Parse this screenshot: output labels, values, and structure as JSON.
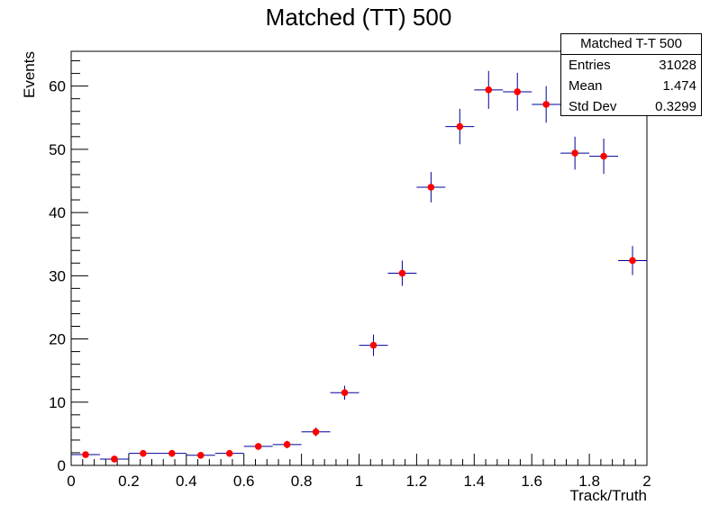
{
  "chart_data": {
    "type": "scatter",
    "title": "Matched (TT) 500",
    "xlabel": "Track/Truth",
    "ylabel": "Events",
    "xlim": [
      0,
      2
    ],
    "ylim": [
      0,
      65.5
    ],
    "x_major_ticks": [
      0,
      0.2,
      0.4,
      0.6,
      0.8,
      1,
      1.2,
      1.4,
      1.6,
      1.8,
      2
    ],
    "x_tick_labels": [
      "0",
      "0.2",
      "0.4",
      "0.6",
      "0.8",
      "1",
      "1.2",
      "1.4",
      "1.6",
      "1.8",
      "2"
    ],
    "y_major_ticks": [
      0,
      10,
      20,
      30,
      40,
      50,
      60
    ],
    "y_tick_labels": [
      "0",
      "10",
      "20",
      "30",
      "40",
      "50",
      "60"
    ],
    "bin_width": 0.1,
    "series": [
      {
        "name": "Matched T-T 500",
        "x": [
          0.05,
          0.15,
          0.25,
          0.35,
          0.45,
          0.55,
          0.65,
          0.75,
          0.85,
          0.95,
          1.05,
          1.15,
          1.25,
          1.35,
          1.45,
          1.55,
          1.65,
          1.75,
          1.85,
          1.95
        ],
        "y": [
          1.7,
          1.0,
          1.9,
          1.9,
          1.6,
          1.9,
          3.0,
          3.3,
          5.3,
          11.5,
          19.0,
          30.4,
          44.0,
          53.6,
          59.4,
          59.1,
          57.1,
          49.4,
          48.9,
          32.4
        ],
        "y_err": [
          0.4,
          0.3,
          0.4,
          0.4,
          0.4,
          0.4,
          0.5,
          0.6,
          0.7,
          1.1,
          1.7,
          2.0,
          2.4,
          2.8,
          3.0,
          3.0,
          2.9,
          2.6,
          2.8,
          2.3
        ]
      }
    ],
    "colors": {
      "marker": "#ff0000",
      "error_bar": "#000099",
      "axis": "#000000",
      "background": "#ffffff"
    },
    "legend": "top-right"
  },
  "stats_box": {
    "title": "Matched T-T 500",
    "rows": [
      {
        "label": "Entries",
        "value": "31028"
      },
      {
        "label": "Mean",
        "value": "1.474"
      },
      {
        "label": "Std Dev",
        "value": "0.3299"
      }
    ]
  }
}
